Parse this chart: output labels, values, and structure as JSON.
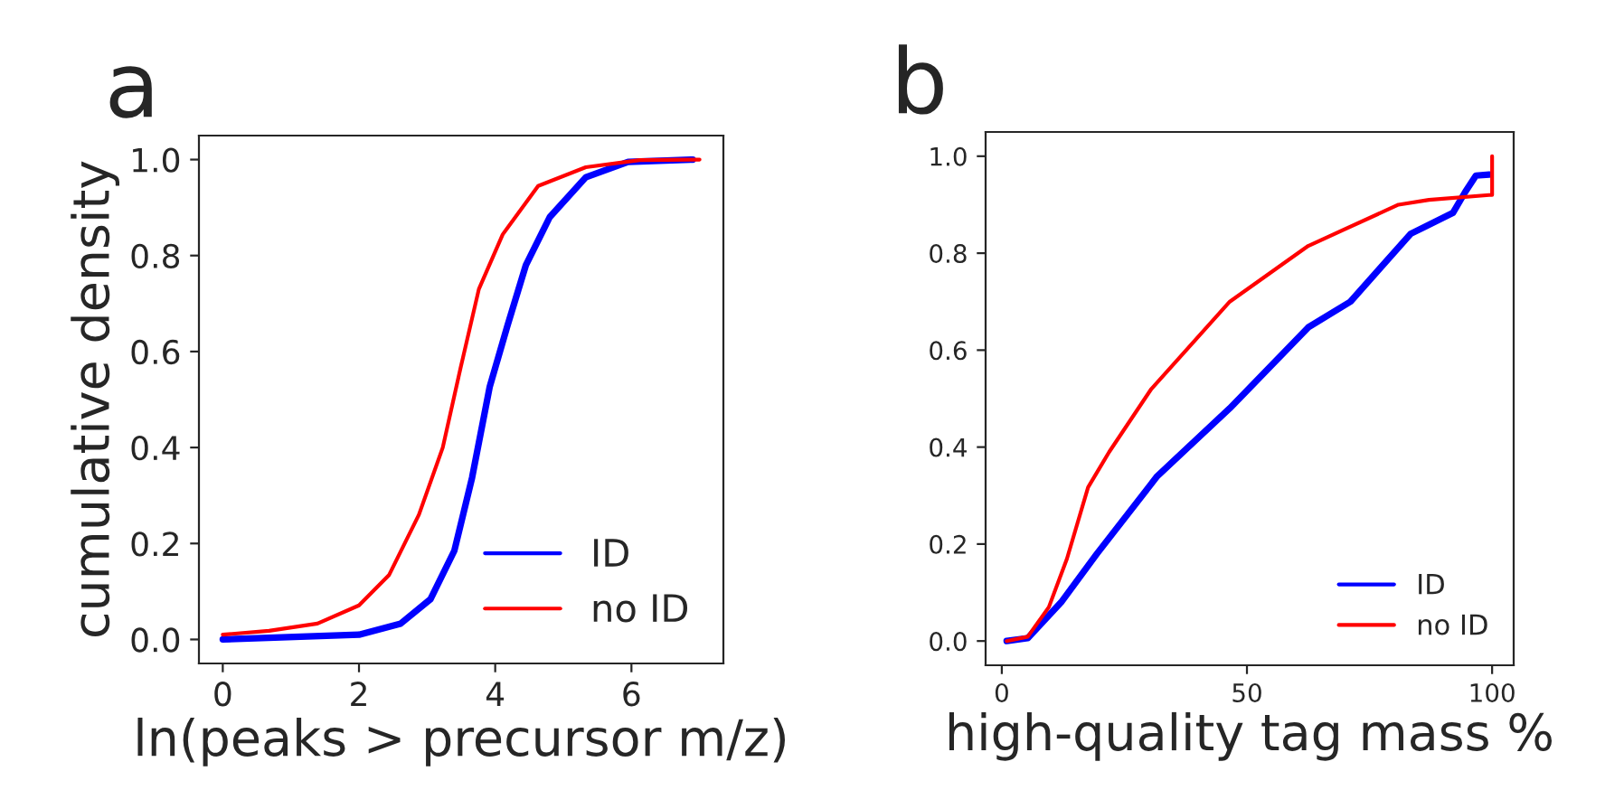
{
  "chart_data": [
    {
      "type": "line",
      "title": "a",
      "xlabel": "ln(peaks > precursor m/z)",
      "ylabel": "cumulative density",
      "xlim": [
        -0.35,
        7.35
      ],
      "ylim": [
        -0.05,
        1.05
      ],
      "xticks": [
        0,
        2,
        4,
        6
      ],
      "yticks": [
        {
          "value": 0,
          "label": "0.0"
        },
        {
          "value": 0.2,
          "label": "0.2"
        },
        {
          "value": 0.4,
          "label": "0.4"
        },
        {
          "value": 0.6,
          "label": "0.6"
        },
        {
          "value": 0.8,
          "label": "0.8"
        },
        {
          "value": 1,
          "label": "1.0"
        }
      ],
      "grid": false,
      "legend": "lower right",
      "series": [
        {
          "name": "ID",
          "color": "#0000ff",
          "x": [
            0,
            2.0,
            2.61,
            3.05,
            3.4,
            3.66,
            3.92,
            4.18,
            4.45,
            4.8,
            5.33,
            5.95,
            6.9
          ],
          "values": [
            0.0,
            0.01,
            0.033,
            0.084,
            0.185,
            0.337,
            0.527,
            0.654,
            0.78,
            0.88,
            0.963,
            0.995,
            1.0
          ]
        },
        {
          "name": "no ID",
          "color": "#ff0000",
          "x": [
            0,
            0.68,
            1.39,
            2.0,
            2.44,
            2.88,
            3.23,
            3.49,
            3.76,
            4.11,
            4.63,
            5.33,
            6.12,
            7.0
          ],
          "values": [
            0.01,
            0.018,
            0.033,
            0.071,
            0.134,
            0.26,
            0.4,
            0.565,
            0.73,
            0.844,
            0.945,
            0.984,
            0.999,
            1.0
          ]
        }
      ]
    },
    {
      "type": "line",
      "title": "b",
      "xlabel": "high-quality tag mass %",
      "xlim": [
        -3.3,
        104.4
      ],
      "ylim": [
        -0.05,
        1.05
      ],
      "xticks": [
        0,
        50,
        100
      ],
      "yticks": [
        {
          "value": 0,
          "label": "0.0"
        },
        {
          "value": 0.2,
          "label": "0.2"
        },
        {
          "value": 0.4,
          "label": "0.4"
        },
        {
          "value": 0.6,
          "label": "0.6"
        },
        {
          "value": 0.8,
          "label": "0.8"
        },
        {
          "value": 1,
          "label": "1.0"
        }
      ],
      "grid": false,
      "legend": "lower right",
      "series": [
        {
          "name": "ID",
          "color": "#0000ff",
          "x": [
            1.0,
            5.3,
            12.1,
            19.4,
            31.7,
            46.5,
            62.5,
            71.1,
            83.4,
            92.0,
            94.5,
            96.7,
            99.4
          ],
          "values": [
            0,
            0.006,
            0.08,
            0.18,
            0.34,
            0.48,
            0.647,
            0.7,
            0.84,
            0.883,
            0.926,
            0.96,
            0.962
          ]
        },
        {
          "name": "no ID",
          "color": "#ff0000",
          "x": [
            1.0,
            5.3,
            9.6,
            13.3,
            17.6,
            21.9,
            30.5,
            46.5,
            62.5,
            80.9,
            87.1,
            99.4,
            100,
            100
          ],
          "values": [
            0,
            0.009,
            0.07,
            0.17,
            0.317,
            0.39,
            0.52,
            0.7,
            0.815,
            0.9,
            0.91,
            0.92,
            0.92,
            1.0
          ]
        }
      ]
    }
  ]
}
